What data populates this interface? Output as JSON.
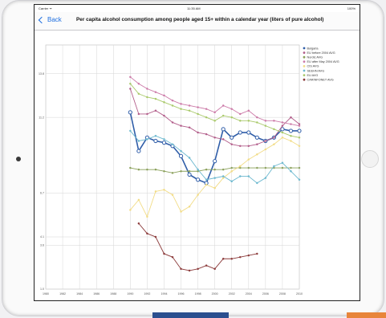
{
  "status": {
    "carrier": "Carrier ᯤ",
    "time": "11:35 AM",
    "battery": "100%"
  },
  "nav": {
    "back": "Back",
    "title": "Per capita alcohol consumption among people aged 15+ within a calendar year (liters of pure alcohol)"
  },
  "chart_data": {
    "type": "line",
    "ylim": [
      1.0,
      15.5
    ],
    "yticks": [
      "1.0",
      "3.6",
      "4.1",
      "6.7",
      "11.2",
      "13.8"
    ],
    "xticks": [
      "1980",
      "1982",
      "1984",
      "1986",
      "1988",
      "1990",
      "1992",
      "1994",
      "1996",
      "1998",
      "2000",
      "2002",
      "2004",
      "2006",
      "2008",
      "2010"
    ],
    "x": [
      1980,
      1981,
      1982,
      1983,
      1984,
      1985,
      1986,
      1987,
      1988,
      1989,
      1990,
      1991,
      1992,
      1993,
      1994,
      1995,
      1996,
      1997,
      1998,
      1999,
      2000,
      2001,
      2002,
      2003,
      2004,
      2005,
      2006,
      2007,
      2008,
      2009,
      2010
    ],
    "series": [
      {
        "name": "Bulgaria",
        "color": "#2f5da8",
        "values": [
          null,
          null,
          null,
          null,
          null,
          null,
          null,
          null,
          null,
          null,
          11.5,
          9.2,
          10.0,
          9.8,
          9.7,
          9.5,
          8.9,
          7.8,
          7.5,
          7.3,
          8.6,
          10.5,
          10.0,
          10.3,
          10.3,
          10.0,
          9.8,
          10.0,
          10.5,
          10.4,
          10.4
        ]
      },
      {
        "name": "EU before 2004 AVG",
        "color": "#b25d8a",
        "values": [
          null,
          null,
          null,
          null,
          null,
          null,
          null,
          null,
          null,
          null,
          12.9,
          11.4,
          11.4,
          11.6,
          11.3,
          10.9,
          10.7,
          10.6,
          10.3,
          10.2,
          10.0,
          9.9,
          9.6,
          9.5,
          9.5,
          9.6,
          9.8,
          10.0,
          10.7,
          11.2,
          10.8
        ]
      },
      {
        "name": "Nordic AVG",
        "color": "#8aa05a",
        "values": [
          null,
          null,
          null,
          null,
          null,
          null,
          null,
          null,
          null,
          null,
          8.2,
          8.1,
          8.1,
          8.1,
          8.0,
          7.9,
          8.0,
          8.0,
          8.0,
          8.1,
          8.1,
          8.1,
          8.2,
          8.2,
          8.2,
          8.2,
          8.2,
          8.2,
          8.2,
          8.2,
          8.2
        ]
      },
      {
        "name": "EU after May 2004 AVG",
        "color": "#cc7aa8",
        "values": [
          null,
          null,
          null,
          null,
          null,
          null,
          null,
          null,
          null,
          null,
          13.6,
          13.2,
          12.9,
          12.7,
          12.5,
          12.2,
          12.0,
          11.9,
          11.8,
          11.7,
          11.5,
          11.9,
          11.7,
          11.4,
          11.6,
          11.2,
          11.0,
          11.0,
          10.9,
          10.8,
          10.7
        ]
      },
      {
        "name": "CIS AVG",
        "color": "#f2dc86",
        "values": [
          null,
          null,
          null,
          null,
          null,
          null,
          null,
          null,
          null,
          null,
          5.7,
          6.3,
          5.3,
          6.8,
          6.9,
          6.6,
          5.6,
          5.9,
          6.6,
          7.2,
          7.0,
          7.6,
          8.0,
          8.3,
          8.7,
          9.0,
          9.3,
          9.6,
          10.0,
          9.8,
          9.5
        ]
      },
      {
        "name": "SEEHN AVG",
        "color": "#6cb8cf",
        "values": [
          null,
          null,
          null,
          null,
          null,
          null,
          null,
          null,
          null,
          null,
          10.4,
          9.8,
          9.9,
          10.1,
          9.9,
          9.6,
          9.2,
          8.8,
          8.1,
          7.5,
          7.6,
          7.7,
          7.4,
          7.7,
          7.7,
          7.3,
          7.6,
          8.3,
          8.5,
          8.0,
          7.5
        ]
      },
      {
        "name": "EU AVG",
        "color": "#a9c96a",
        "values": [
          null,
          null,
          null,
          null,
          null,
          null,
          null,
          null,
          null,
          null,
          13.2,
          12.6,
          12.4,
          12.3,
          12.1,
          11.9,
          11.7,
          11.6,
          11.4,
          11.2,
          11.0,
          11.3,
          11.2,
          11.0,
          11.0,
          10.9,
          10.7,
          10.5,
          10.3,
          10.1,
          10.0
        ]
      },
      {
        "name": "CARINFONET AVG",
        "color": "#8b3a3a",
        "values": [
          null,
          null,
          null,
          null,
          null,
          null,
          null,
          null,
          null,
          null,
          null,
          4.9,
          4.3,
          4.1,
          3.1,
          2.9,
          2.2,
          2.1,
          2.2,
          2.4,
          2.2,
          2.8,
          2.8,
          2.9,
          3.0,
          3.1,
          null,
          null,
          null,
          null,
          null
        ]
      }
    ]
  }
}
